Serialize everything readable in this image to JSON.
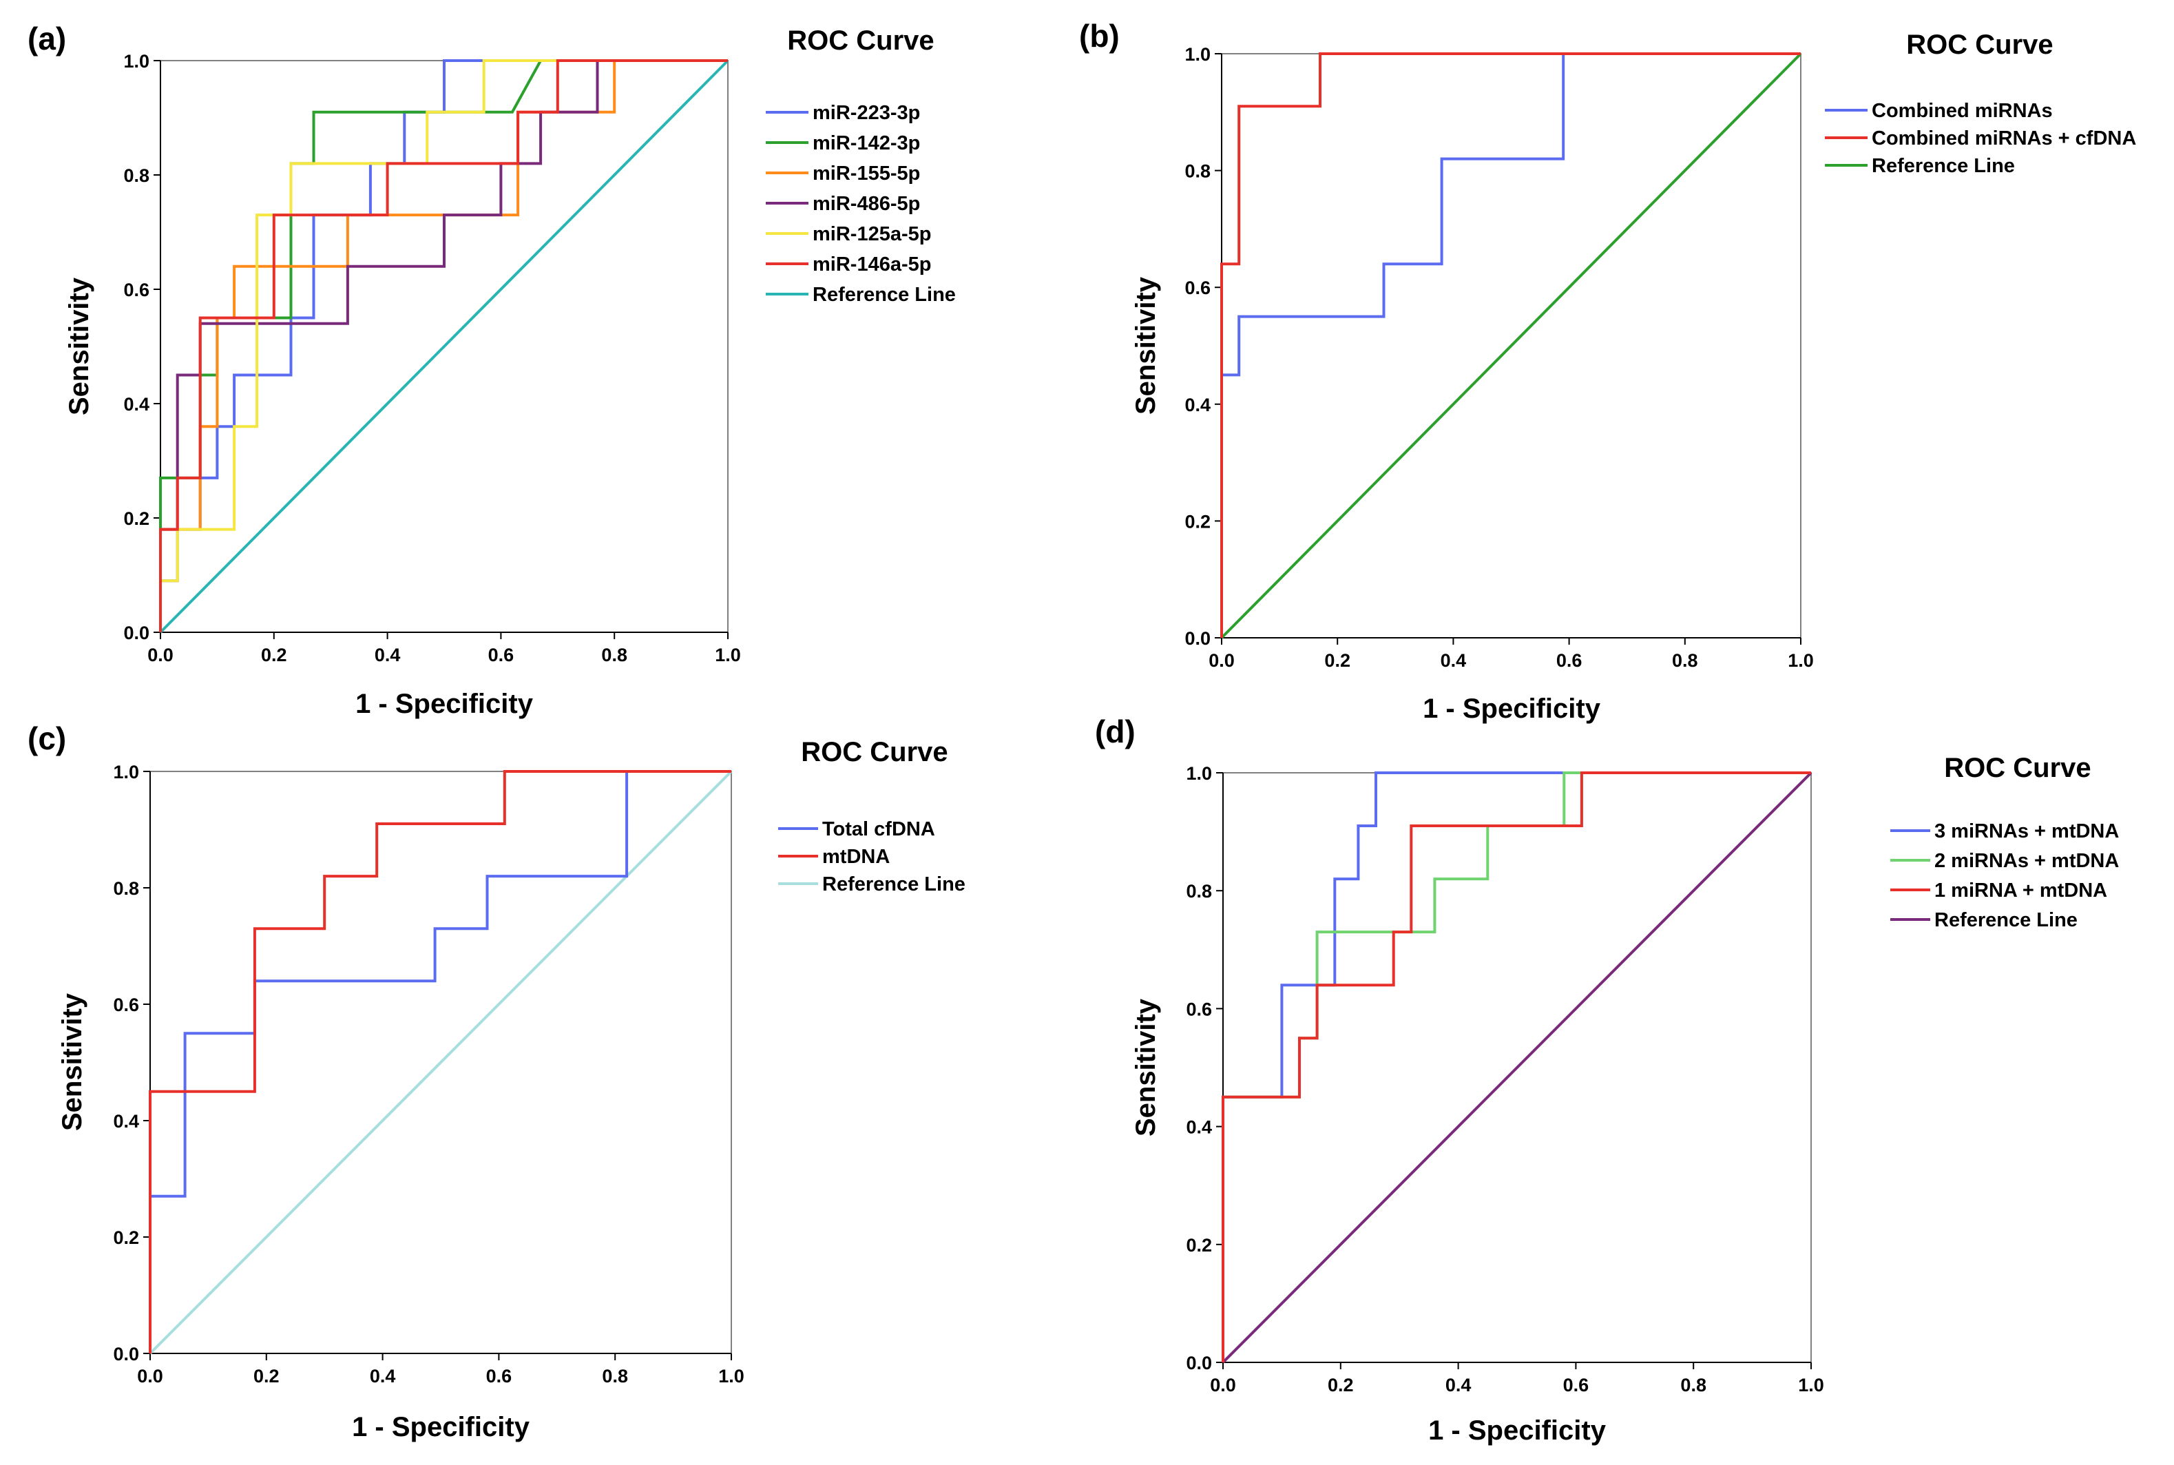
{
  "chart_data": [
    {
      "panel_label": "(a)",
      "type": "line",
      "title": "ROC Curve",
      "xlabel": "1 - Specificity",
      "ylabel": "Sensitivity",
      "xlim": [
        0,
        1
      ],
      "ylim": [
        0,
        1
      ],
      "x_ticks": [
        "0.0",
        "0.2",
        "0.4",
        "0.6",
        "0.8",
        "1.0"
      ],
      "y_ticks": [
        "0.0",
        "0.2",
        "0.4",
        "0.6",
        "0.8",
        "1.0"
      ],
      "legend_position": "right",
      "series": [
        {
          "name": "miR-223-3p",
          "color": "#5b6cf0",
          "points": [
            [
              0,
              0
            ],
            [
              0,
              0.09
            ],
            [
              0.03,
              0.09
            ],
            [
              0.03,
              0.18
            ],
            [
              0.07,
              0.18
            ],
            [
              0.07,
              0.27
            ],
            [
              0.1,
              0.27
            ],
            [
              0.1,
              0.36
            ],
            [
              0.13,
              0.36
            ],
            [
              0.13,
              0.45
            ],
            [
              0.23,
              0.45
            ],
            [
              0.23,
              0.55
            ],
            [
              0.27,
              0.55
            ],
            [
              0.27,
              0.73
            ],
            [
              0.37,
              0.73
            ],
            [
              0.37,
              0.82
            ],
            [
              0.43,
              0.82
            ],
            [
              0.43,
              0.91
            ],
            [
              0.5,
              0.91
            ],
            [
              0.5,
              1
            ],
            [
              1,
              1
            ]
          ]
        },
        {
          "name": "miR-142-3p",
          "color": "#2ca02c",
          "points": [
            [
              0,
              0
            ],
            [
              0,
              0.27
            ],
            [
              0.07,
              0.27
            ],
            [
              0.07,
              0.45
            ],
            [
              0.1,
              0.45
            ],
            [
              0.1,
              0.55
            ],
            [
              0.23,
              0.55
            ],
            [
              0.23,
              0.82
            ],
            [
              0.27,
              0.82
            ],
            [
              0.27,
              0.91
            ],
            [
              0.62,
              0.91
            ],
            [
              0.67,
              1
            ],
            [
              1,
              1
            ]
          ]
        },
        {
          "name": "miR-155-5p",
          "color": "#ff8c1a",
          "points": [
            [
              0,
              0
            ],
            [
              0,
              0.18
            ],
            [
              0.07,
              0.18
            ],
            [
              0.07,
              0.36
            ],
            [
              0.1,
              0.36
            ],
            [
              0.1,
              0.55
            ],
            [
              0.13,
              0.55
            ],
            [
              0.13,
              0.64
            ],
            [
              0.33,
              0.64
            ],
            [
              0.33,
              0.73
            ],
            [
              0.63,
              0.73
            ],
            [
              0.63,
              0.91
            ],
            [
              0.77,
              0.91
            ],
            [
              0.8,
              0.91
            ],
            [
              0.8,
              1
            ],
            [
              1,
              1
            ]
          ]
        },
        {
          "name": "miR-486-5p",
          "color": "#7a2a7a",
          "points": [
            [
              0,
              0
            ],
            [
              0,
              0.18
            ],
            [
              0.03,
              0.18
            ],
            [
              0.03,
              0.45
            ],
            [
              0.07,
              0.45
            ],
            [
              0.07,
              0.54
            ],
            [
              0.2,
              0.54
            ],
            [
              0.33,
              0.54
            ],
            [
              0.33,
              0.64
            ],
            [
              0.5,
              0.64
            ],
            [
              0.5,
              0.73
            ],
            [
              0.6,
              0.73
            ],
            [
              0.6,
              0.82
            ],
            [
              0.67,
              0.82
            ],
            [
              0.67,
              0.91
            ],
            [
              0.77,
              0.91
            ],
            [
              0.77,
              1
            ],
            [
              1,
              1
            ]
          ]
        },
        {
          "name": "miR-125a-5p",
          "color": "#f5e642",
          "points": [
            [
              0,
              0
            ],
            [
              0,
              0.09
            ],
            [
              0.03,
              0.09
            ],
            [
              0.03,
              0.18
            ],
            [
              0.13,
              0.18
            ],
            [
              0.13,
              0.36
            ],
            [
              0.17,
              0.36
            ],
            [
              0.17,
              0.73
            ],
            [
              0.23,
              0.73
            ],
            [
              0.23,
              0.82
            ],
            [
              0.47,
              0.82
            ],
            [
              0.47,
              0.91
            ],
            [
              0.57,
              0.91
            ],
            [
              0.57,
              1
            ],
            [
              1,
              1
            ]
          ]
        },
        {
          "name": "miR-146a-5p",
          "color": "#e8302a",
          "points": [
            [
              0,
              0
            ],
            [
              0,
              0.18
            ],
            [
              0.03,
              0.18
            ],
            [
              0.03,
              0.27
            ],
            [
              0.07,
              0.27
            ],
            [
              0.07,
              0.55
            ],
            [
              0.2,
              0.55
            ],
            [
              0.2,
              0.73
            ],
            [
              0.4,
              0.73
            ],
            [
              0.4,
              0.82
            ],
            [
              0.63,
              0.82
            ],
            [
              0.63,
              0.91
            ],
            [
              0.7,
              0.91
            ],
            [
              0.7,
              1
            ],
            [
              1,
              1
            ]
          ]
        },
        {
          "name": "Reference Line",
          "color": "#2ab5b5",
          "points": [
            [
              0,
              0
            ],
            [
              1,
              1
            ]
          ]
        }
      ]
    },
    {
      "panel_label": "(b)",
      "type": "line",
      "title": "ROC Curve",
      "xlabel": "1 - Specificity",
      "ylabel": "Sensitivity",
      "xlim": [
        0,
        1
      ],
      "ylim": [
        0,
        1
      ],
      "x_ticks": [
        "0.0",
        "0.2",
        "0.4",
        "0.6",
        "0.8",
        "1.0"
      ],
      "y_ticks": [
        "0.0",
        "0.2",
        "0.4",
        "0.6",
        "0.8",
        "1.0"
      ],
      "legend_position": "right",
      "series": [
        {
          "name": "Combined miRNAs",
          "color": "#5b6cf0",
          "points": [
            [
              0,
              0
            ],
            [
              0,
              0.45
            ],
            [
              0.03,
              0.45
            ],
            [
              0.03,
              0.55
            ],
            [
              0.28,
              0.55
            ],
            [
              0.28,
              0.64
            ],
            [
              0.38,
              0.64
            ],
            [
              0.38,
              0.82
            ],
            [
              0.59,
              0.82
            ],
            [
              0.59,
              1
            ],
            [
              1,
              1
            ]
          ]
        },
        {
          "name": "Combined miRNAs + cfDNA",
          "color": "#e8302a",
          "points": [
            [
              0,
              0
            ],
            [
              0,
              0.64
            ],
            [
              0.03,
              0.64
            ],
            [
              0.03,
              0.91
            ],
            [
              0.17,
              0.91
            ],
            [
              0.17,
              1
            ],
            [
              1,
              1
            ]
          ]
        },
        {
          "name": "Reference Line",
          "color": "#2ca02c",
          "points": [
            [
              0,
              0
            ],
            [
              1,
              1
            ]
          ]
        }
      ]
    },
    {
      "panel_label": "(c)",
      "type": "line",
      "title": "ROC Curve",
      "xlabel": "1 - Specificity",
      "ylabel": "Sensitivity",
      "xlim": [
        0,
        1
      ],
      "ylim": [
        0,
        1
      ],
      "x_ticks": [
        "0.0",
        "0.2",
        "0.4",
        "0.6",
        "0.8",
        "1.0"
      ],
      "y_ticks": [
        "0.0",
        "0.2",
        "0.4",
        "0.6",
        "0.8",
        "1.0"
      ],
      "legend_position": "right",
      "series": [
        {
          "name": "Total cfDNA",
          "color": "#5b6cf0",
          "points": [
            [
              0,
              0
            ],
            [
              0,
              0.27
            ],
            [
              0.06,
              0.27
            ],
            [
              0.06,
              0.55
            ],
            [
              0.18,
              0.55
            ],
            [
              0.18,
              0.64
            ],
            [
              0.49,
              0.64
            ],
            [
              0.49,
              0.73
            ],
            [
              0.58,
              0.73
            ],
            [
              0.58,
              0.82
            ],
            [
              0.82,
              0.82
            ],
            [
              0.82,
              1
            ],
            [
              1,
              1
            ]
          ]
        },
        {
          "name": "mtDNA",
          "color": "#e8302a",
          "points": [
            [
              0,
              0
            ],
            [
              0,
              0.45
            ],
            [
              0.18,
              0.45
            ],
            [
              0.18,
              0.73
            ],
            [
              0.3,
              0.73
            ],
            [
              0.3,
              0.82
            ],
            [
              0.39,
              0.82
            ],
            [
              0.39,
              0.91
            ],
            [
              0.61,
              0.91
            ],
            [
              0.61,
              1
            ],
            [
              1,
              1
            ]
          ]
        },
        {
          "name": "Reference Line",
          "color": "#a8dede",
          "points": [
            [
              0,
              0
            ],
            [
              1,
              1
            ]
          ]
        }
      ]
    },
    {
      "panel_label": "(d)",
      "type": "line",
      "title": "ROC Curve",
      "xlabel": "1 - Specificity",
      "ylabel": "Sensitivity",
      "xlim": [
        0,
        1
      ],
      "ylim": [
        0,
        1
      ],
      "x_ticks": [
        "0.0",
        "0.2",
        "0.4",
        "0.6",
        "0.8",
        "1.0"
      ],
      "y_ticks": [
        "0.0",
        "0.2",
        "0.4",
        "0.6",
        "0.8",
        "1.0"
      ],
      "legend_position": "right",
      "series": [
        {
          "name": "3 miRNAs + mtDNA",
          "color": "#5b6cf0",
          "points": [
            [
              0,
              0
            ],
            [
              0,
              0.45
            ],
            [
              0.1,
              0.45
            ],
            [
              0.1,
              0.64
            ],
            [
              0.19,
              0.64
            ],
            [
              0.19,
              0.82
            ],
            [
              0.23,
              0.82
            ],
            [
              0.23,
              0.91
            ],
            [
              0.26,
              0.91
            ],
            [
              0.26,
              1
            ],
            [
              1,
              1
            ]
          ]
        },
        {
          "name": "2 miRNAs + mtDNA",
          "color": "#6fd36f",
          "points": [
            [
              0,
              0
            ],
            [
              0,
              0.45
            ],
            [
              0.13,
              0.45
            ],
            [
              0.13,
              0.55
            ],
            [
              0.16,
              0.55
            ],
            [
              0.16,
              0.73
            ],
            [
              0.36,
              0.73
            ],
            [
              0.36,
              0.82
            ],
            [
              0.45,
              0.82
            ],
            [
              0.45,
              0.91
            ],
            [
              0.58,
              0.91
            ],
            [
              0.58,
              1
            ],
            [
              1,
              1
            ]
          ]
        },
        {
          "name": "1 miRNA + mtDNA",
          "color": "#e8302a",
          "points": [
            [
              0,
              0
            ],
            [
              0,
              0.45
            ],
            [
              0.13,
              0.45
            ],
            [
              0.13,
              0.55
            ],
            [
              0.16,
              0.55
            ],
            [
              0.16,
              0.64
            ],
            [
              0.29,
              0.64
            ],
            [
              0.29,
              0.73
            ],
            [
              0.32,
              0.73
            ],
            [
              0.32,
              0.91
            ],
            [
              0.61,
              0.91
            ],
            [
              0.61,
              1
            ],
            [
              1,
              1
            ]
          ]
        },
        {
          "name": "Reference Line",
          "color": "#7a2a7a",
          "points": [
            [
              0,
              0
            ],
            [
              1,
              1
            ]
          ]
        }
      ]
    }
  ]
}
